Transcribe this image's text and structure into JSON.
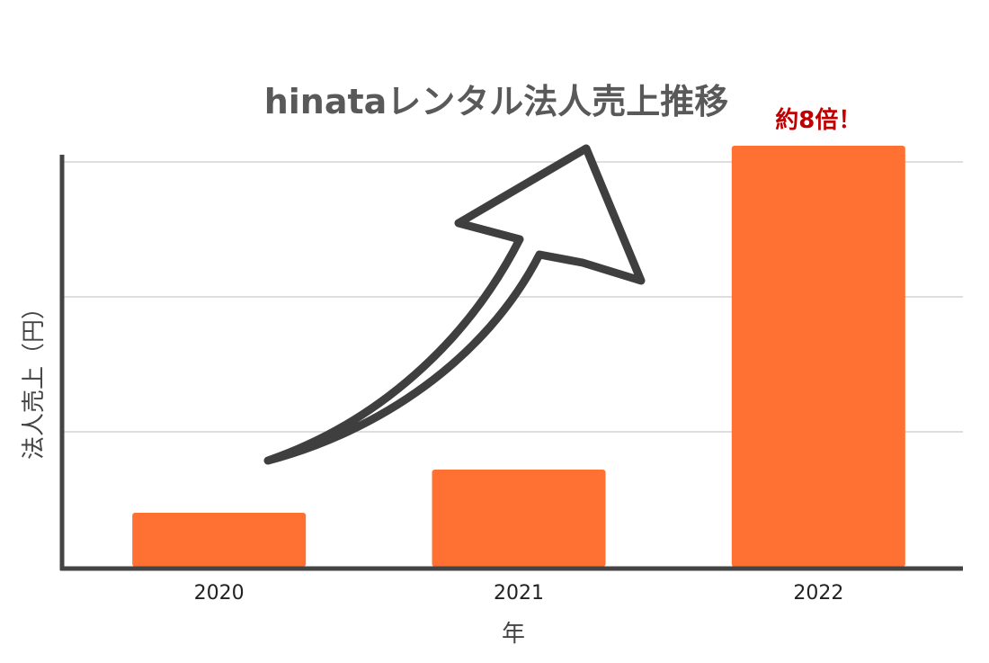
{
  "chart_data": {
    "type": "bar",
    "title": "hinataレンタル法人売上推移",
    "xlabel": "年",
    "ylabel": "法人売上（円）",
    "categories": [
      "2020",
      "2021",
      "2022"
    ],
    "values": [
      1,
      1.8,
      7.8
    ],
    "ylim": [
      0,
      8
    ],
    "grid": true,
    "annotation": "約8倍！",
    "colors": {
      "bar": "#FF7133",
      "axis": "#444444",
      "grid": "#d4d4d4",
      "title": "#595959",
      "annotation": "#c00000",
      "arrow": "#3f3f3f"
    }
  }
}
